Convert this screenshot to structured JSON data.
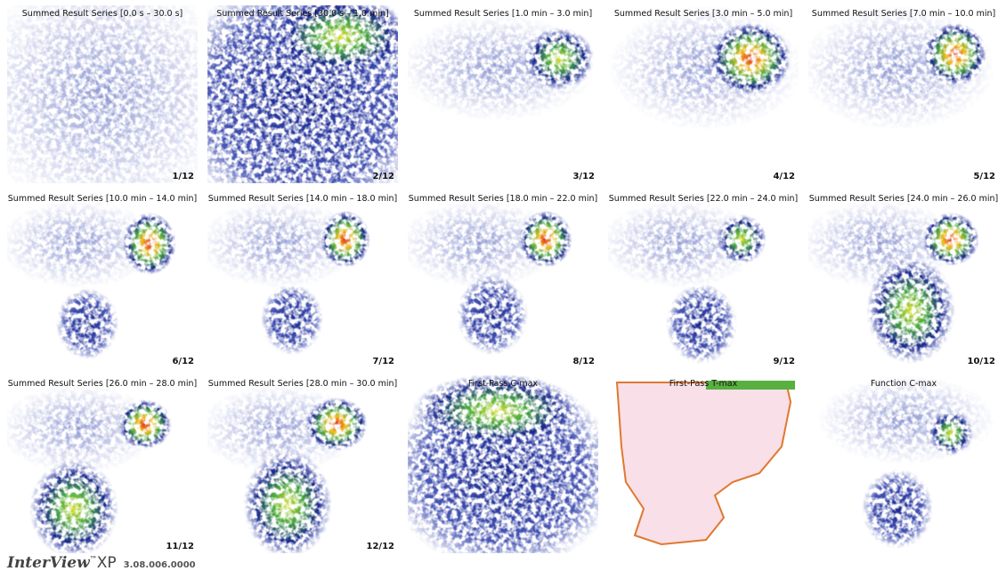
{
  "panels": [
    {
      "title": "Summed Result Series [0.0 s – 30.0 s]",
      "index": "1/12"
    },
    {
      "title": "Summed Result Series [30.0 s – 1.0 min]",
      "index": "2/12"
    },
    {
      "title": "Summed Result Series [1.0 min – 3.0 min]",
      "index": "3/12"
    },
    {
      "title": "Summed Result Series [3.0 min – 5.0 min]",
      "index": "4/12"
    },
    {
      "title": "Summed Result Series [7.0 min – 10.0 min]",
      "index": "5/12"
    },
    {
      "title": "Summed Result Series [10.0 min – 14.0 min]",
      "index": "6/12"
    },
    {
      "title": "Summed Result Series [14.0 min – 18.0 min]",
      "index": "7/12"
    },
    {
      "title": "Summed Result Series [18.0 min – 22.0 min]",
      "index": "8/12"
    },
    {
      "title": "Summed Result Series [22.0 min – 24.0 min]",
      "index": "9/12"
    },
    {
      "title": "Summed Result Series [24.0 min – 26.0 min]",
      "index": "10/12"
    },
    {
      "title": "Summed Result Series [26.0 min – 28.0 min]",
      "index": "11/12"
    },
    {
      "title": "Summed Result Series [28.0 min – 30.0 min]",
      "index": "12/12"
    },
    {
      "title": "First-Pass C-max"
    },
    {
      "title": "First-Pass T-max"
    },
    {
      "title": "Function C-max"
    }
  ],
  "footer": {
    "brand": "InterView",
    "trademark": "™",
    "product": "XP",
    "version": "3.08.006.0000"
  }
}
